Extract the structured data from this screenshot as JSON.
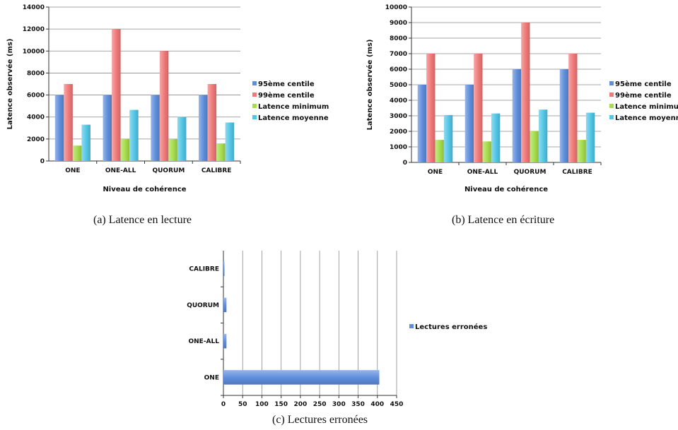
{
  "colors": {
    "s95": "#5e8ddb",
    "s99": "#f07878",
    "smin": "#a6dd4c",
    "smoy": "#52c6e6",
    "grid": "#8a8a8a",
    "axis": "#333333"
  },
  "chart_data": [
    {
      "type": "bar",
      "orientation": "vertical",
      "caption": "(a) Latence en lecture",
      "categories": [
        "ONE",
        "ONE-ALL",
        "QUORUM",
        "CALIBRE"
      ],
      "series": [
        {
          "name": "95ème centile",
          "values": [
            6000,
            6000,
            6000,
            6000
          ]
        },
        {
          "name": "99ème centile",
          "values": [
            7000,
            12000,
            10000,
            7000
          ]
        },
        {
          "name": "Latence minimum",
          "values": [
            1400,
            2000,
            2000,
            1600
          ]
        },
        {
          "name": "Latence moyenne",
          "values": [
            3300,
            4650,
            4000,
            3500
          ]
        }
      ],
      "xlabel": "Niveau de cohérence",
      "ylabel": "Latence observée (ms)",
      "ylim": [
        0,
        14000
      ],
      "yticks": [
        0,
        2000,
        4000,
        6000,
        8000,
        10000,
        12000,
        14000
      ],
      "grid": true,
      "legend": "right"
    },
    {
      "type": "bar",
      "orientation": "vertical",
      "caption": "(b) Latence en écriture",
      "categories": [
        "ONE",
        "ONE-ALL",
        "QUORUM",
        "CALIBRE"
      ],
      "series": [
        {
          "name": "95ème centile",
          "values": [
            5000,
            5000,
            6000,
            6000
          ]
        },
        {
          "name": "99ème centile",
          "values": [
            7000,
            7000,
            9000,
            7000
          ]
        },
        {
          "name": "Latence minimum",
          "values": [
            1450,
            1350,
            2000,
            1450
          ]
        },
        {
          "name": "Latence moyenne",
          "values": [
            3050,
            3150,
            3400,
            3200
          ]
        }
      ],
      "xlabel": "Niveau de cohérence",
      "ylabel": "Latence observée (ms)",
      "ylim": [
        0,
        10000
      ],
      "yticks": [
        0,
        1000,
        2000,
        3000,
        4000,
        5000,
        6000,
        7000,
        8000,
        9000,
        10000
      ],
      "grid": true,
      "legend": "right"
    },
    {
      "type": "bar",
      "orientation": "horizontal",
      "caption": "(c) Lectures erronées",
      "categories": [
        "ONE",
        "ONE-ALL",
        "QUORUM",
        "CALIBRE"
      ],
      "series": [
        {
          "name": "Lectures erronées",
          "values": [
            405,
            8,
            8,
            2
          ]
        }
      ],
      "xlabel": "",
      "ylabel": "",
      "xlim": [
        0,
        450
      ],
      "xticks": [
        0,
        50,
        100,
        150,
        200,
        250,
        300,
        350,
        400,
        450
      ],
      "grid": true,
      "legend": "right"
    }
  ]
}
